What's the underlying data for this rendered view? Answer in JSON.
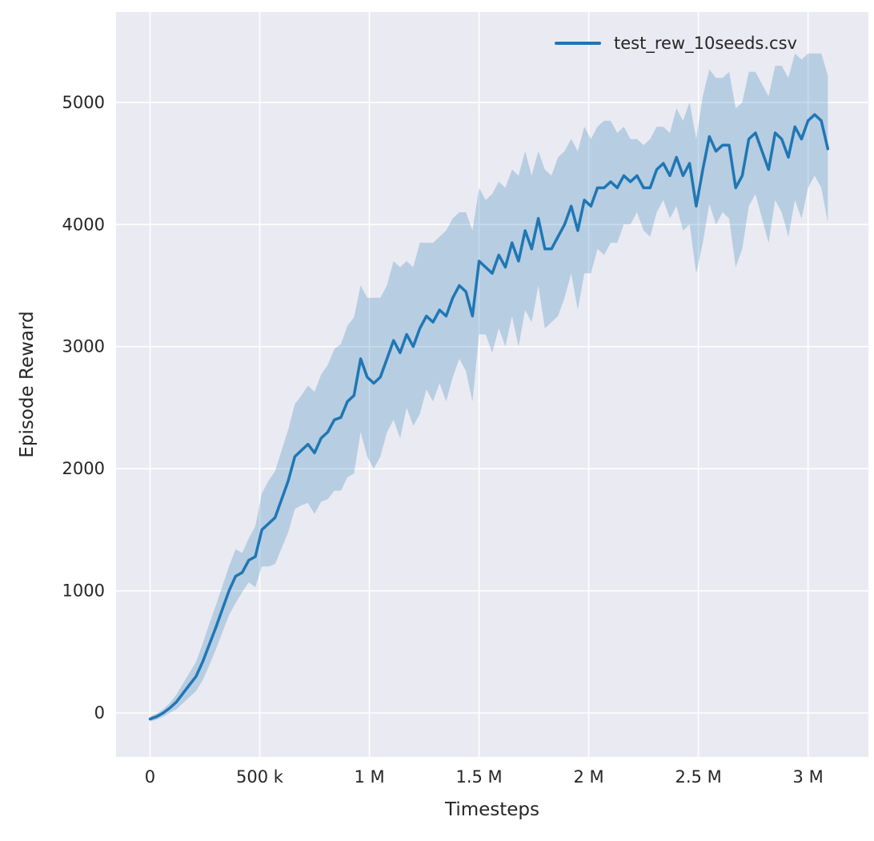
{
  "figure": {
    "background": "#ffffff",
    "plot_background": "#eaeaf2",
    "grid_color": "#ffffff",
    "text_color": "#262626"
  },
  "chart_data": {
    "type": "line",
    "title": "",
    "xlabel": "Timesteps",
    "ylabel": "Episode Reward",
    "grid": true,
    "legend_position": "upper right",
    "legend": [
      {
        "label": "test_rew_10seeds.csv",
        "color": "#1f77b4"
      }
    ],
    "xlim": [
      -155000,
      3275000
    ],
    "ylim": [
      -360,
      5740
    ],
    "xticks": {
      "values": [
        0,
        500000,
        1000000,
        1500000,
        2000000,
        2500000,
        3000000
      ],
      "labels": [
        "0",
        "500 k",
        "1 M",
        "1.5 M",
        "2 M",
        "2.5 M",
        "3 M"
      ]
    },
    "yticks": {
      "values": [
        0,
        1000,
        2000,
        3000,
        4000,
        5000
      ],
      "labels": [
        "0",
        "1000",
        "2000",
        "3000",
        "4000",
        "5000"
      ]
    },
    "series": [
      {
        "name": "test_rew_10seeds.csv",
        "color": "#1f77b4",
        "band_alpha": 0.25,
        "line_width": 3.5,
        "x": [
          0,
          30000,
          60000,
          90000,
          120000,
          150000,
          180000,
          210000,
          240000,
          270000,
          300000,
          330000,
          360000,
          390000,
          420000,
          450000,
          480000,
          510000,
          540000,
          570000,
          600000,
          630000,
          660000,
          690000,
          720000,
          750000,
          780000,
          810000,
          840000,
          870000,
          900000,
          930000,
          960000,
          990000,
          1020000,
          1050000,
          1080000,
          1110000,
          1140000,
          1170000,
          1200000,
          1230000,
          1260000,
          1290000,
          1320000,
          1350000,
          1380000,
          1410000,
          1440000,
          1470000,
          1500000,
          1530000,
          1560000,
          1590000,
          1620000,
          1650000,
          1680000,
          1710000,
          1740000,
          1770000,
          1800000,
          1830000,
          1860000,
          1890000,
          1920000,
          1950000,
          1980000,
          2010000,
          2040000,
          2070000,
          2100000,
          2130000,
          2160000,
          2190000,
          2220000,
          2250000,
          2280000,
          2310000,
          2340000,
          2370000,
          2400000,
          2430000,
          2460000,
          2490000,
          2520000,
          2550000,
          2580000,
          2610000,
          2640000,
          2670000,
          2700000,
          2730000,
          2760000,
          2790000,
          2820000,
          2850000,
          2880000,
          2910000,
          2940000,
          2970000,
          3000000,
          3030000,
          3060000,
          3090000
        ],
        "mean": [
          -50,
          -30,
          0,
          40,
          90,
          160,
          230,
          300,
          420,
          560,
          700,
          850,
          1000,
          1120,
          1150,
          1250,
          1280,
          1500,
          1550,
          1600,
          1750,
          1900,
          2100,
          2150,
          2200,
          2130,
          2250,
          2300,
          2400,
          2420,
          2550,
          2600,
          2900,
          2750,
          2700,
          2750,
          2900,
          3050,
          2950,
          3100,
          3000,
          3150,
          3250,
          3200,
          3300,
          3250,
          3400,
          3500,
          3450,
          3250,
          3700,
          3650,
          3600,
          3750,
          3650,
          3850,
          3700,
          3950,
          3800,
          4050,
          3800,
          3800,
          3900,
          4000,
          4150,
          3950,
          4200,
          4150,
          4300,
          4300,
          4350,
          4300,
          4400,
          4350,
          4400,
          4300,
          4300,
          4450,
          4500,
          4400,
          4550,
          4400,
          4500,
          4150,
          4450,
          4720,
          4600,
          4650,
          4650,
          4300,
          4400,
          4700,
          4750,
          4600,
          4450,
          4750,
          4700,
          4550,
          4800,
          4700,
          4850,
          4900,
          4850,
          4620
        ],
        "band_halfwidth": [
          20,
          25,
          30,
          40,
          60,
          80,
          100,
          120,
          150,
          170,
          180,
          190,
          200,
          220,
          160,
          180,
          250,
          300,
          350,
          380,
          400,
          420,
          430,
          450,
          480,
          500,
          520,
          550,
          580,
          600,
          620,
          640,
          600,
          650,
          700,
          650,
          600,
          650,
          700,
          600,
          650,
          700,
          600,
          650,
          600,
          700,
          650,
          600,
          650,
          700,
          600,
          550,
          650,
          600,
          650,
          600,
          700,
          650,
          600,
          550,
          650,
          600,
          650,
          600,
          550,
          650,
          600,
          550,
          500,
          550,
          500,
          450,
          400,
          350,
          300,
          350,
          400,
          350,
          300,
          350,
          400,
          450,
          500,
          550,
          600,
          550,
          600,
          550,
          600,
          650,
          600,
          550,
          500,
          550,
          600,
          550,
          600,
          650,
          600,
          650,
          550,
          500,
          550,
          600
        ]
      }
    ]
  }
}
